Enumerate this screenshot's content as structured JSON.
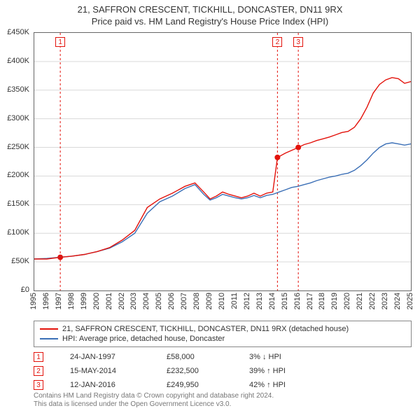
{
  "title_line1": "21, SAFFRON CRESCENT, TICKHILL, DONCASTER, DN11 9RX",
  "title_line2": "Price paid vs. HM Land Registry's House Price Index (HPI)",
  "title_fontsize": 13,
  "chart": {
    "type": "line",
    "x_start_year": 1995,
    "x_end_year": 2025,
    "x_tick_labels": [
      "1995",
      "1996",
      "1997",
      "1998",
      "1999",
      "2000",
      "2001",
      "2002",
      "2003",
      "2004",
      "2005",
      "2006",
      "2007",
      "2008",
      "2009",
      "2010",
      "2011",
      "2012",
      "2013",
      "2014",
      "2015",
      "2016",
      "2017",
      "2018",
      "2019",
      "2020",
      "2021",
      "2022",
      "2023",
      "2024",
      "2025"
    ],
    "y_min": 0,
    "y_max": 450,
    "y_tick_labels": [
      "£0",
      "£50K",
      "£100K",
      "£150K",
      "£200K",
      "£250K",
      "£300K",
      "£350K",
      "£400K",
      "£450K"
    ],
    "y_tick_values": [
      0,
      50,
      100,
      150,
      200,
      250,
      300,
      350,
      400,
      450
    ],
    "grid_color": "#d9d9d9",
    "axis_color": "#666666",
    "background": "#ffffff",
    "line_width": 1.4,
    "series_prop": {
      "name": "21, SAFFRON CRESCENT, TICKHILL, DONCASTER, DN11 9RX (detached house)",
      "color": "#e3120b",
      "points": [
        [
          1995.0,
          55
        ],
        [
          1996.0,
          55
        ],
        [
          1997.07,
          58
        ],
        [
          1998.0,
          60
        ],
        [
          1999.0,
          63
        ],
        [
          2000.0,
          68
        ],
        [
          2001.0,
          75
        ],
        [
          2002.0,
          88
        ],
        [
          2003.0,
          105
        ],
        [
          2004.0,
          145
        ],
        [
          2005.0,
          160
        ],
        [
          2006.0,
          170
        ],
        [
          2007.0,
          182
        ],
        [
          2007.8,
          188
        ],
        [
          2008.5,
          172
        ],
        [
          2009.0,
          160
        ],
        [
          2009.5,
          165
        ],
        [
          2010.0,
          172
        ],
        [
          2010.5,
          168
        ],
        [
          2011.0,
          165
        ],
        [
          2011.5,
          162
        ],
        [
          2012.0,
          165
        ],
        [
          2012.5,
          170
        ],
        [
          2013.0,
          165
        ],
        [
          2013.5,
          170
        ],
        [
          2014.0,
          172
        ],
        [
          2014.37,
          232.5
        ],
        [
          2015.0,
          240
        ],
        [
          2016.03,
          249.95
        ],
        [
          2016.5,
          255
        ],
        [
          2017.0,
          258
        ],
        [
          2017.5,
          262
        ],
        [
          2018.0,
          265
        ],
        [
          2018.5,
          268
        ],
        [
          2019.0,
          272
        ],
        [
          2019.5,
          276
        ],
        [
          2020.0,
          278
        ],
        [
          2020.5,
          285
        ],
        [
          2021.0,
          300
        ],
        [
          2021.5,
          320
        ],
        [
          2022.0,
          345
        ],
        [
          2022.5,
          360
        ],
        [
          2023.0,
          368
        ],
        [
          2023.5,
          372
        ],
        [
          2024.0,
          370
        ],
        [
          2024.5,
          362
        ],
        [
          2025.0,
          365
        ]
      ]
    },
    "series_hpi": {
      "name": "HPI: Average price, detached house, Doncaster",
      "color": "#3b6fb6",
      "points": [
        [
          1995.0,
          55
        ],
        [
          1996.0,
          56
        ],
        [
          1997.0,
          58
        ],
        [
          1998.0,
          60
        ],
        [
          1999.0,
          63
        ],
        [
          2000.0,
          68
        ],
        [
          2001.0,
          74
        ],
        [
          2002.0,
          85
        ],
        [
          2003.0,
          100
        ],
        [
          2004.0,
          135
        ],
        [
          2005.0,
          155
        ],
        [
          2006.0,
          165
        ],
        [
          2007.0,
          178
        ],
        [
          2007.8,
          185
        ],
        [
          2008.5,
          168
        ],
        [
          2009.0,
          158
        ],
        [
          2009.5,
          162
        ],
        [
          2010.0,
          168
        ],
        [
          2010.5,
          165
        ],
        [
          2011.0,
          162
        ],
        [
          2011.5,
          160
        ],
        [
          2012.0,
          162
        ],
        [
          2012.5,
          166
        ],
        [
          2013.0,
          162
        ],
        [
          2013.5,
          166
        ],
        [
          2014.0,
          168
        ],
        [
          2014.5,
          172
        ],
        [
          2015.0,
          176
        ],
        [
          2015.5,
          180
        ],
        [
          2016.0,
          182
        ],
        [
          2016.5,
          185
        ],
        [
          2017.0,
          188
        ],
        [
          2017.5,
          192
        ],
        [
          2018.0,
          195
        ],
        [
          2018.5,
          198
        ],
        [
          2019.0,
          200
        ],
        [
          2019.5,
          203
        ],
        [
          2020.0,
          205
        ],
        [
          2020.5,
          210
        ],
        [
          2021.0,
          218
        ],
        [
          2021.5,
          228
        ],
        [
          2022.0,
          240
        ],
        [
          2022.5,
          250
        ],
        [
          2023.0,
          256
        ],
        [
          2023.5,
          258
        ],
        [
          2024.0,
          256
        ],
        [
          2024.5,
          254
        ],
        [
          2025.0,
          256
        ]
      ]
    },
    "sale_markers": [
      {
        "n": "1",
        "year": 1997.07,
        "price": 58
      },
      {
        "n": "2",
        "year": 2014.37,
        "price": 232.5
      },
      {
        "n": "3",
        "year": 2016.03,
        "price": 249.95
      }
    ],
    "marker_dash_color": "#e3120b",
    "marker_dot_fill": "#e3120b",
    "marker_badge_border": "#e3120b",
    "marker_badge_text": "#e3120b"
  },
  "legend": {
    "row1_label": "21, SAFFRON CRESCENT, TICKHILL, DONCASTER, DN11 9RX (detached house)",
    "row1_color": "#e3120b",
    "row2_label": "HPI: Average price, detached house, Doncaster",
    "row2_color": "#3b6fb6"
  },
  "sales": [
    {
      "n": "1",
      "date": "24-JAN-1997",
      "price": "£58,000",
      "delta": "3% ↓ HPI"
    },
    {
      "n": "2",
      "date": "15-MAY-2014",
      "price": "£232,500",
      "delta": "39% ↑ HPI"
    },
    {
      "n": "3",
      "date": "12-JAN-2016",
      "price": "£249,950",
      "delta": "42% ↑ HPI"
    }
  ],
  "sale_badge_border": "#e3120b",
  "sale_badge_text": "#e3120b",
  "attribution_line1": "Contains HM Land Registry data © Crown copyright and database right 2024.",
  "attribution_line2": "This data is licensed under the Open Government Licence v3.0."
}
